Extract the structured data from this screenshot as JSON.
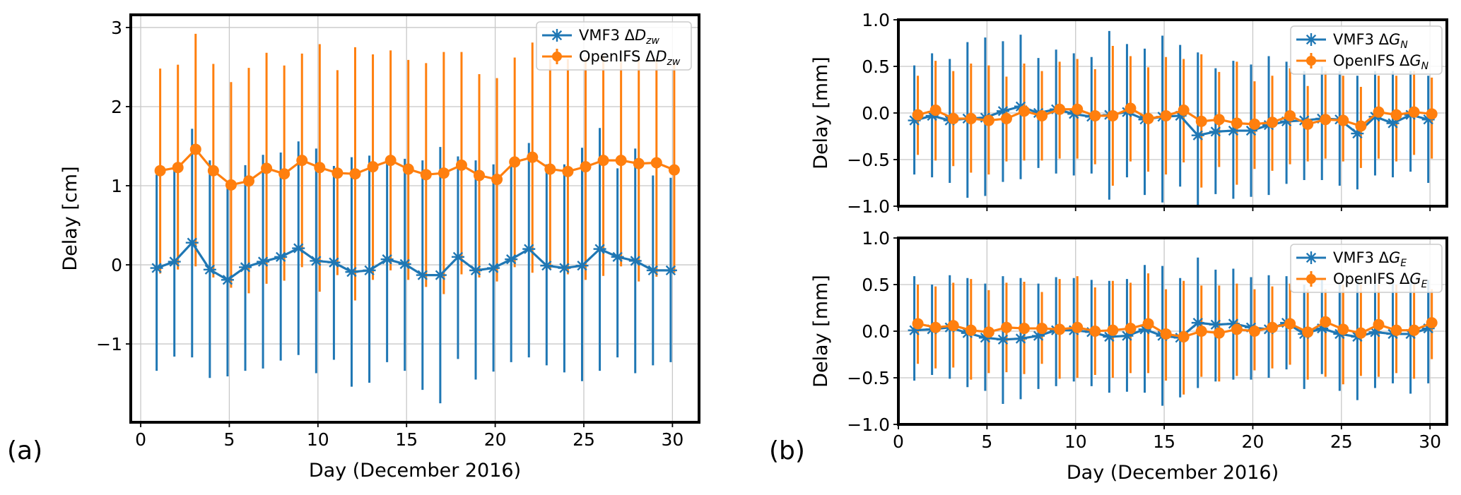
{
  "figure": {
    "panel_labels": [
      "(a)",
      "(b)"
    ]
  },
  "chart_data": [
    {
      "id": "zwd",
      "type": "line",
      "panel": "(a)",
      "xlabel": "Day (December 2016)",
      "ylabel": "Delay [cm]",
      "xlim": [
        -0.56,
        31.5
      ],
      "ylim": [
        -1.99,
        3.16
      ],
      "xticks": [
        0,
        5,
        10,
        15,
        20,
        25,
        30
      ],
      "xtick_labels": [
        "0",
        "5",
        "10",
        "15",
        "20",
        "25",
        "30"
      ],
      "yticks": [
        -1,
        0,
        1,
        2,
        3
      ],
      "ytick_labels": [
        "−1",
        "0",
        "1",
        "2",
        "3"
      ],
      "grid": true,
      "legend_position": "top-right",
      "x": [
        1,
        2,
        3,
        4,
        5,
        6,
        7,
        8,
        9,
        10,
        11,
        12,
        13,
        14,
        15,
        16,
        17,
        18,
        19,
        20,
        21,
        22,
        23,
        24,
        25,
        26,
        27,
        28,
        29,
        30
      ],
      "series": [
        {
          "name": "VMF3 ΔD_zw",
          "legend_main": "VMF3 Δ",
          "legend_var": "D",
          "legend_sub": "zw",
          "color": "#1f77b4",
          "marker": "x-star",
          "values": [
            -0.04,
            0.04,
            0.28,
            -0.06,
            -0.19,
            -0.03,
            0.04,
            0.1,
            0.21,
            0.05,
            0.03,
            -0.09,
            -0.07,
            0.07,
            0.01,
            -0.13,
            -0.13,
            0.1,
            -0.07,
            -0.04,
            0.07,
            0.2,
            -0.01,
            -0.04,
            -0.01,
            0.2,
            0.1,
            0.05,
            -0.07,
            -0.07
          ],
          "err_upper": [
            1.14,
            1.2,
            1.72,
            1.32,
            0.98,
            1.26,
            1.39,
            1.42,
            1.56,
            1.47,
            1.25,
            1.36,
            1.38,
            1.3,
            1.34,
            1.32,
            1.49,
            1.37,
            1.32,
            1.27,
            1.25,
            1.54,
            1.27,
            1.27,
            1.48,
            1.73,
            1.22,
            1.47,
            1.13,
            1.1
          ],
          "err_lower": [
            -1.34,
            -1.16,
            -1.17,
            -1.43,
            -1.41,
            -1.34,
            -1.31,
            -1.21,
            -1.14,
            -1.37,
            -1.2,
            -1.54,
            -1.49,
            -1.23,
            -1.34,
            -1.58,
            -1.75,
            -1.19,
            -1.45,
            -1.35,
            -1.23,
            -1.17,
            -1.27,
            -1.36,
            -1.47,
            -1.34,
            -1.17,
            -1.37,
            -1.27,
            -1.23
          ]
        },
        {
          "name": "OpenIFS ΔD_zw",
          "legend_main": "OpenIFS Δ",
          "legend_var": "D",
          "legend_sub": "zw",
          "color": "#ff7f0e",
          "marker": "circle",
          "values": [
            1.19,
            1.23,
            1.46,
            1.19,
            1.01,
            1.06,
            1.22,
            1.15,
            1.32,
            1.23,
            1.16,
            1.15,
            1.24,
            1.32,
            1.21,
            1.14,
            1.16,
            1.26,
            1.13,
            1.08,
            1.3,
            1.36,
            1.21,
            1.18,
            1.24,
            1.32,
            1.32,
            1.28,
            1.29,
            1.2
          ],
          "err_upper": [
            2.48,
            2.53,
            2.92,
            2.54,
            2.31,
            2.49,
            2.68,
            2.52,
            2.67,
            2.79,
            2.46,
            2.75,
            2.66,
            2.71,
            2.59,
            2.55,
            2.69,
            2.69,
            2.41,
            2.36,
            2.62,
            2.81,
            2.6,
            2.6,
            2.62,
            2.65,
            2.6,
            2.6,
            2.6,
            2.55
          ],
          "err_lower": [
            -0.11,
            -0.06,
            -0.02,
            -0.16,
            -0.29,
            -0.36,
            -0.24,
            -0.2,
            -0.03,
            -0.34,
            -0.13,
            -0.45,
            -0.19,
            -0.07,
            -0.19,
            -0.28,
            -0.37,
            -0.12,
            -0.16,
            -0.21,
            -0.03,
            -0.1,
            -0.06,
            -0.12,
            -0.19,
            -0.14,
            -0.02,
            -0.21,
            -0.15,
            -0.1
          ]
        }
      ]
    },
    {
      "id": "gn",
      "type": "line",
      "panel": "(b)",
      "xlabel": "",
      "ylabel": "Delay [mm]",
      "xlim": [
        0,
        30.95
      ],
      "ylim": [
        -1.0,
        1.0
      ],
      "xticks": [
        0,
        5,
        10,
        15,
        20,
        25,
        30
      ],
      "xtick_labels": [],
      "yticks": [
        -1.0,
        -0.5,
        0.0,
        0.5,
        1.0
      ],
      "ytick_labels": [
        "−1.0",
        "−0.5",
        "0.0",
        "0.5",
        "1.0"
      ],
      "grid": true,
      "legend_position": "top-right",
      "x": [
        1,
        2,
        3,
        4,
        5,
        6,
        7,
        8,
        9,
        10,
        11,
        12,
        13,
        14,
        15,
        16,
        17,
        18,
        19,
        20,
        21,
        22,
        23,
        24,
        25,
        26,
        27,
        28,
        29,
        30
      ],
      "series": [
        {
          "name": "VMF3 ΔG_N",
          "legend_main": "VMF3 Δ",
          "legend_var": "G",
          "legend_sub": "N",
          "color": "#1f77b4",
          "marker": "x-star",
          "values": [
            -0.08,
            -0.03,
            -0.08,
            -0.06,
            -0.05,
            0.02,
            0.07,
            0.0,
            0.04,
            -0.01,
            -0.04,
            -0.02,
            0.01,
            -0.07,
            -0.04,
            -0.03,
            -0.24,
            -0.2,
            -0.19,
            -0.19,
            -0.13,
            -0.09,
            -0.08,
            -0.06,
            -0.07,
            -0.22,
            -0.04,
            -0.11,
            -0.02,
            -0.07
          ],
          "err_upper": [
            0.51,
            0.64,
            0.58,
            0.76,
            0.81,
            0.77,
            0.84,
            0.59,
            0.68,
            0.64,
            0.6,
            0.88,
            0.74,
            0.69,
            0.83,
            0.73,
            0.65,
            0.48,
            0.56,
            0.52,
            0.61,
            0.55,
            0.45,
            0.5,
            0.45,
            0.4,
            0.45,
            0.45,
            0.45,
            0.4
          ],
          "err_lower": [
            -0.66,
            -0.69,
            -0.75,
            -0.91,
            -0.89,
            -0.74,
            -0.71,
            -0.59,
            -0.65,
            -0.67,
            -0.65,
            -0.93,
            -0.69,
            -0.88,
            -0.96,
            -0.79,
            -0.99,
            -0.87,
            -0.92,
            -0.9,
            -0.88,
            -0.76,
            -0.72,
            -0.72,
            -0.78,
            -0.82,
            -0.67,
            -0.69,
            -0.63,
            -0.75
          ]
        },
        {
          "name": "OpenIFS ΔG_N",
          "legend_main": "OpenIFS Δ",
          "legend_var": "G",
          "legend_sub": "N",
          "color": "#ff7f0e",
          "marker": "circle",
          "values": [
            -0.02,
            0.03,
            -0.06,
            -0.06,
            -0.08,
            -0.06,
            0.02,
            -0.03,
            0.04,
            0.04,
            -0.03,
            -0.03,
            0.05,
            -0.06,
            -0.03,
            0.03,
            -0.09,
            -0.07,
            -0.11,
            -0.12,
            -0.1,
            -0.03,
            -0.12,
            -0.07,
            -0.08,
            -0.14,
            0.01,
            -0.02,
            0.01,
            -0.01
          ],
          "err_upper": [
            0.4,
            0.56,
            0.45,
            0.53,
            0.51,
            0.39,
            0.53,
            0.45,
            0.55,
            0.58,
            0.47,
            0.72,
            0.61,
            0.49,
            0.6,
            0.58,
            0.63,
            0.44,
            0.55,
            0.34,
            0.4,
            0.48,
            0.29,
            0.45,
            0.4,
            0.28,
            0.4,
            0.4,
            0.45,
            0.38
          ],
          "err_lower": [
            -0.45,
            -0.51,
            -0.57,
            -0.64,
            -0.66,
            -0.52,
            -0.51,
            -0.51,
            -0.49,
            -0.49,
            -0.55,
            -0.78,
            -0.52,
            -0.63,
            -0.66,
            -0.53,
            -0.8,
            -0.58,
            -0.77,
            -0.6,
            -0.62,
            -0.55,
            -0.52,
            -0.49,
            -0.52,
            -0.59,
            -0.49,
            -0.52,
            -0.45,
            -0.49
          ]
        }
      ]
    },
    {
      "id": "ge",
      "type": "line",
      "panel": "(b)",
      "xlabel": "Day (December 2016)",
      "ylabel": "Delay [mm]",
      "xlim": [
        0,
        30.95
      ],
      "ylim": [
        -1.0,
        1.0
      ],
      "xticks": [
        0,
        5,
        10,
        15,
        20,
        25,
        30
      ],
      "xtick_labels": [
        "0",
        "5",
        "10",
        "15",
        "20",
        "25",
        "30"
      ],
      "yticks": [
        -1.0,
        -0.5,
        0.0,
        0.5,
        1.0
      ],
      "ytick_labels": [
        "−1.0",
        "−0.5",
        "0.0",
        "0.5",
        "1.0"
      ],
      "grid": true,
      "legend_position": "top-right",
      "x": [
        1,
        2,
        3,
        4,
        5,
        6,
        7,
        8,
        9,
        10,
        11,
        12,
        13,
        14,
        15,
        16,
        17,
        18,
        19,
        20,
        21,
        22,
        23,
        24,
        25,
        26,
        27,
        28,
        29,
        30
      ],
      "series": [
        {
          "name": "VMF3 ΔG_E",
          "legend_main": "VMF3 Δ",
          "legend_var": "G",
          "legend_sub": "E",
          "color": "#1f77b4",
          "marker": "x-star",
          "values": [
            0.01,
            0.02,
            0.04,
            -0.02,
            -0.07,
            -0.09,
            -0.08,
            -0.05,
            0.01,
            0.01,
            -0.01,
            -0.06,
            -0.05,
            0.02,
            -0.05,
            -0.07,
            0.09,
            0.07,
            0.08,
            0.04,
            0.02,
            0.09,
            -0.03,
            0.03,
            -0.03,
            -0.06,
            -0.01,
            -0.03,
            -0.03,
            0.03
          ],
          "err_upper": [
            0.59,
            0.5,
            0.6,
            0.57,
            0.51,
            0.59,
            0.57,
            0.51,
            0.58,
            0.57,
            0.55,
            0.54,
            0.56,
            0.71,
            0.7,
            0.57,
            0.79,
            0.66,
            0.67,
            0.58,
            0.6,
            0.59,
            0.5,
            0.55,
            0.5,
            0.55,
            0.55,
            0.55,
            0.55,
            0.55
          ],
          "err_lower": [
            -0.53,
            -0.47,
            -0.51,
            -0.6,
            -0.64,
            -0.78,
            -0.73,
            -0.62,
            -0.59,
            -0.54,
            -0.59,
            -0.66,
            -0.65,
            -0.66,
            -0.8,
            -0.71,
            -0.61,
            -0.54,
            -0.52,
            -0.52,
            -0.5,
            -0.41,
            -0.62,
            -0.46,
            -0.64,
            -0.74,
            -0.61,
            -0.56,
            -0.67,
            -0.56
          ]
        },
        {
          "name": "OpenIFS ΔG_E",
          "legend_main": "OpenIFS Δ",
          "legend_var": "G",
          "legend_sub": "E",
          "color": "#ff7f0e",
          "marker": "circle",
          "values": [
            0.08,
            0.04,
            0.06,
            0.01,
            -0.01,
            0.04,
            0.03,
            0.03,
            0.02,
            0.04,
            0.0,
            0.01,
            0.03,
            0.08,
            -0.03,
            -0.06,
            0.0,
            -0.02,
            0.02,
            0.0,
            0.04,
            0.08,
            -0.01,
            0.1,
            0.02,
            -0.02,
            0.07,
            0.01,
            0.01,
            0.09
          ],
          "err_upper": [
            0.5,
            0.48,
            0.52,
            0.56,
            0.44,
            0.52,
            0.53,
            0.42,
            0.56,
            0.59,
            0.47,
            0.54,
            0.52,
            0.62,
            0.45,
            0.54,
            0.49,
            0.49,
            0.51,
            0.45,
            0.48,
            0.51,
            0.45,
            0.45,
            0.5,
            0.5,
            0.5,
            0.5,
            0.5,
            0.45
          ],
          "err_lower": [
            -0.35,
            -0.4,
            -0.39,
            -0.52,
            -0.45,
            -0.44,
            -0.46,
            -0.35,
            -0.51,
            -0.5,
            -0.47,
            -0.5,
            -0.45,
            -0.45,
            -0.53,
            -0.68,
            -0.49,
            -0.54,
            -0.48,
            -0.42,
            -0.4,
            -0.36,
            -0.52,
            -0.49,
            -0.57,
            -0.48,
            -0.49,
            -0.45,
            -0.51,
            -0.3
          ]
        }
      ]
    }
  ]
}
